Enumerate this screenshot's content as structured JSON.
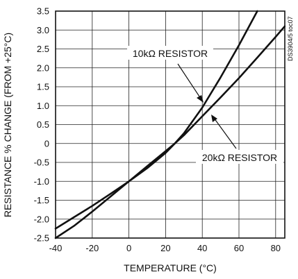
{
  "chart_data": {
    "type": "line",
    "title": "",
    "xlabel": "TEMPERATURE (°C)",
    "ylabel": "RESISTANCE % CHANGE (FROM +25°C)",
    "xlim": [
      -40,
      85
    ],
    "ylim": [
      -2.5,
      3.5
    ],
    "x_ticks": [
      -40,
      -20,
      0,
      20,
      40,
      60,
      80
    ],
    "x_tick_labels": [
      "-40",
      "-20",
      "0",
      "20",
      "40",
      "60",
      "80"
    ],
    "y_ticks": [
      -2.5,
      -2.0,
      -1.5,
      -1.0,
      -0.5,
      0,
      0.5,
      1.0,
      1.5,
      2.0,
      2.5,
      3.0,
      3.5
    ],
    "y_tick_labels": [
      "-2.5",
      "-2.0",
      "-1.5",
      "-1.0",
      "-0.5",
      "0",
      "0.5",
      "1.0",
      "1.5",
      "2.0",
      "2.5",
      "3.0",
      "3.5"
    ],
    "grid": true,
    "series": [
      {
        "name": "10kΩ RESISTOR",
        "x": [
          -40,
          -30,
          -20,
          -10,
          0,
          10,
          20,
          25,
          30,
          40,
          50,
          60,
          70
        ],
        "y": [
          -2.55,
          -2.18,
          -1.8,
          -1.4,
          -1.0,
          -0.6,
          -0.2,
          0.0,
          0.27,
          0.95,
          1.75,
          2.6,
          3.5
        ]
      },
      {
        "name": "20kΩ RESISTOR",
        "x": [
          -40,
          -30,
          -20,
          -10,
          0,
          10,
          20,
          25,
          30,
          40,
          50,
          60,
          70,
          80,
          85
        ],
        "y": [
          -2.25,
          -1.95,
          -1.65,
          -1.33,
          -1.0,
          -0.65,
          -0.25,
          0.0,
          0.22,
          0.72,
          1.22,
          1.73,
          2.27,
          2.82,
          3.1
        ]
      }
    ],
    "annotations": [
      {
        "text": "10kΩ RESISTOR",
        "points_to": "10kΩ RESISTOR"
      },
      {
        "text": "20kΩ RESISTOR",
        "points_to": "20kΩ RESISTOR"
      }
    ],
    "side_text": "DS3904/5 toc07"
  }
}
